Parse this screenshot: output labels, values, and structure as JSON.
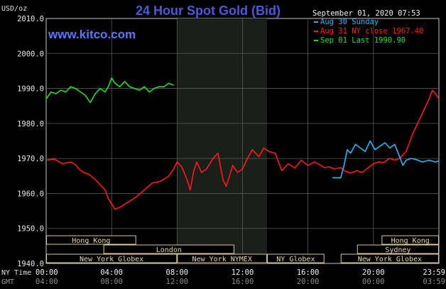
{
  "header": {
    "title": "24 Hour Spot Gold (Bid)",
    "brand": "www.kitco.com",
    "timestamp": "September 01, 2020 07:53",
    "unit_label": "USD/oz"
  },
  "legend": [
    {
      "label": "Aug 30 Sunday",
      "color": "#29b6f6"
    },
    {
      "label": "Aug 31 NY close 1967.40",
      "color": "#ff1a1a"
    },
    {
      "label": "Sep 01 Last 1990.90",
      "color": "#22e022"
    }
  ],
  "axis_labels": {
    "ny_time": "NY Time",
    "gmt": "GMT"
  },
  "markets": [
    {
      "label": "Hong Kong",
      "start": 0,
      "end": 5.5
    },
    {
      "label": "London",
      "start": 3.5,
      "end": 11.5
    },
    {
      "label": "New York Globex",
      "start": 0,
      "end": 8
    },
    {
      "label": "New York NYMEX",
      "start": 8,
      "end": 13.5
    },
    {
      "label": "NY Globex",
      "start": 13.5,
      "end": 17
    },
    {
      "label": "Hong Kong",
      "start": 20.5,
      "end": 24
    },
    {
      "label": "Sydney",
      "start": 19,
      "end": 24
    },
    {
      "label": "New York Globex",
      "start": 18,
      "end": 24
    }
  ],
  "chart_data": {
    "type": "line",
    "xlim": [
      0,
      24
    ],
    "ylim": [
      1940,
      2010
    ],
    "y_ticks": [
      "2010.0",
      "2000.0",
      "1990.0",
      "1980.0",
      "1970.0",
      "1960.0",
      "1950.0",
      "1940.0"
    ],
    "x_ticks_ny": [
      "00:00",
      "04:00",
      "08:00",
      "12:00",
      "16:00",
      "20:00",
      "23:59"
    ],
    "x_ticks_gmt": [
      "04:00",
      "08:00",
      "12:00",
      "16:00",
      "20:00",
      "00:00",
      "03:59"
    ],
    "shaded_range": [
      8,
      13.5
    ],
    "series": [
      {
        "name": "Aug 31 NY close 1967.40",
        "color": "#ff1a1a",
        "x": [
          0,
          0.5,
          1,
          1.5,
          1.8,
          2,
          2.3,
          2.6,
          3,
          3.3,
          3.6,
          3.8,
          4,
          4.2,
          4.5,
          5,
          5.5,
          6,
          6.5,
          7,
          7.5,
          7.8,
          8,
          8.3,
          8.6,
          8.8,
          9,
          9.2,
          9.5,
          9.8,
          10.2,
          10.5,
          10.8,
          11,
          11.2,
          11.4,
          11.7,
          12,
          12.3,
          12.6,
          13,
          13.3,
          13.6,
          14,
          14.4,
          14.8,
          15.2,
          15.6,
          16,
          16.4,
          16.8,
          17,
          17.3,
          17.6,
          18,
          18.3,
          18.6,
          19,
          19.3,
          19.6,
          20,
          20.3,
          20.6,
          21,
          21.3,
          21.6,
          22,
          22.2,
          22.4,
          22.6,
          22.8,
          23,
          23.2,
          23.4,
          23.6,
          23.8,
          24
        ],
        "values": [
          1969.5,
          1969.8,
          1968.5,
          1969,
          1968.2,
          1967,
          1966,
          1965.5,
          1964,
          1962.5,
          1961,
          1958.5,
          1957,
          1955.5,
          1956,
          1957.5,
          1959,
          1961,
          1963,
          1963.5,
          1965,
          1967,
          1969,
          1967.5,
          1964,
          1961,
          1966,
          1969,
          1966,
          1967,
          1970,
          1971.5,
          1964,
          1962,
          1965,
          1968,
          1966,
          1967,
          1970,
          1972.5,
          1970.5,
          1973,
          1972,
          1971.5,
          1966.5,
          1968.5,
          1967.3,
          1969.5,
          1968,
          1969,
          1968,
          1967.4,
          1967.6,
          1967,
          1967.4,
          1966.3,
          1965.8,
          1966.5,
          1966,
          1967,
          1968.5,
          1969,
          1968.8,
          1970,
          1969.5,
          1970,
          1972,
          1974.5,
          1977,
          1979,
          1981,
          1983,
          1985,
          1987,
          1989.5,
          1988.5,
          1987
        ]
      },
      {
        "name": "Aug 30 Sunday",
        "color": "#29b6f6",
        "x": [
          17.5,
          18,
          18.2,
          18.4,
          18.6,
          18.9,
          19.2,
          19.5,
          19.8,
          20.1,
          20.4,
          20.7,
          21,
          21.3,
          21.6,
          21.8,
          22,
          22.3,
          22.6,
          23,
          23.4,
          23.8,
          24
        ],
        "values": [
          1964.5,
          1964.5,
          1968,
          1972.5,
          1971.5,
          1974,
          1973,
          1972,
          1975,
          1972.5,
          1973.5,
          1974.5,
          1973,
          1974,
          1970.5,
          1968,
          1969.5,
          1970,
          1969.7,
          1969,
          1969.5,
          1969,
          1969.3
        ]
      },
      {
        "name": "Sep 01 Last 1990.90",
        "color": "#22e022",
        "x": [
          0,
          0.3,
          0.6,
          0.9,
          1.2,
          1.5,
          1.8,
          2.1,
          2.4,
          2.7,
          3,
          3.3,
          3.6,
          3.8,
          4,
          4.2,
          4.5,
          4.8,
          5.1,
          5.4,
          5.7,
          6,
          6.3,
          6.6,
          6.9,
          7.2,
          7.5,
          7.8
        ],
        "values": [
          1987,
          1989,
          1988.5,
          1989.5,
          1989,
          1990.5,
          1990,
          1989,
          1988,
          1986,
          1988.5,
          1990,
          1989,
          1990.5,
          1993,
          1991.5,
          1990.5,
          1992,
          1990.5,
          1990,
          1989.5,
          1990.5,
          1989,
          1990,
          1990.5,
          1990.5,
          1991.5,
          1990.9
        ]
      }
    ]
  }
}
